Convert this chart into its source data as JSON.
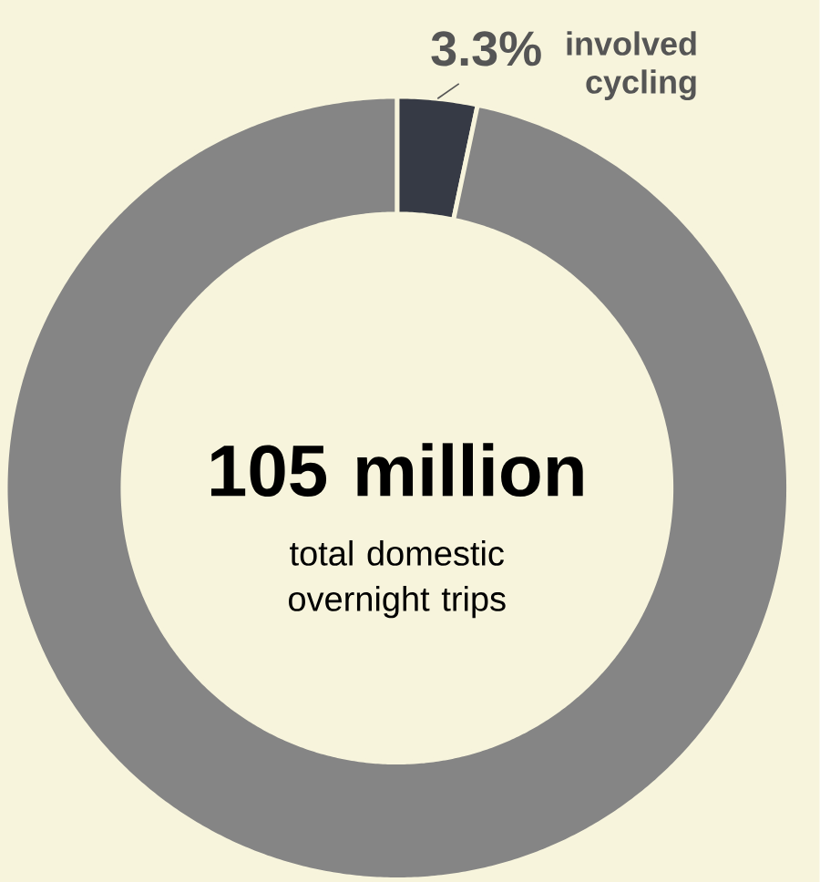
{
  "chart_data": {
    "type": "donut",
    "categories": [
      "involved cycling",
      null
    ],
    "values": [
      3.3,
      96.7
    ],
    "colors": [
      "#363a45",
      "#858585"
    ],
    "value_labels": [
      "3.3%",
      null
    ],
    "annotations": [
      "105 million",
      "total domestic overnight trips"
    ]
  }
}
